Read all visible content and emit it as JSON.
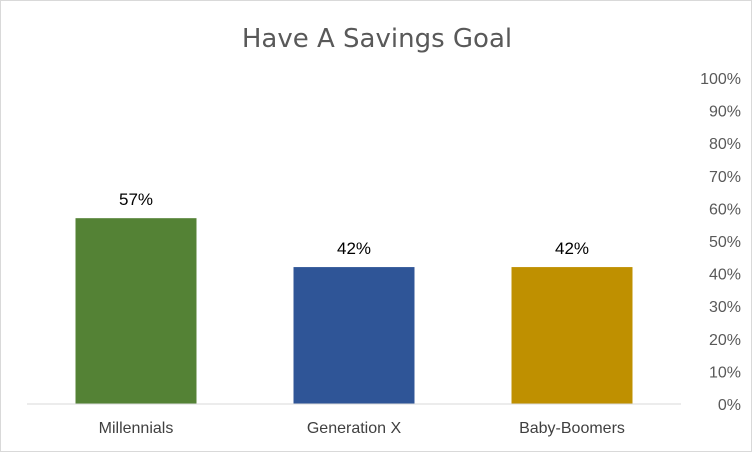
{
  "chart_data": {
    "type": "bar",
    "title": "Have A Savings Goal",
    "categories": [
      "Millennials",
      "Generation X",
      "Baby-Boomers"
    ],
    "values": [
      57,
      42,
      42
    ],
    "data_labels": [
      "57%",
      "42%",
      "42%"
    ],
    "colors": [
      "#548235",
      "#2f5597",
      "#bf9000"
    ],
    "ylim": [
      0,
      100
    ],
    "yticks": [
      0,
      10,
      20,
      30,
      40,
      50,
      60,
      70,
      80,
      90,
      100
    ],
    "ytick_labels": [
      "0%",
      "10%",
      "20%",
      "30%",
      "40%",
      "50%",
      "60%",
      "70%",
      "80%",
      "90%",
      "100%"
    ],
    "y_axis_position": "right",
    "grid": false,
    "legend": "none"
  }
}
